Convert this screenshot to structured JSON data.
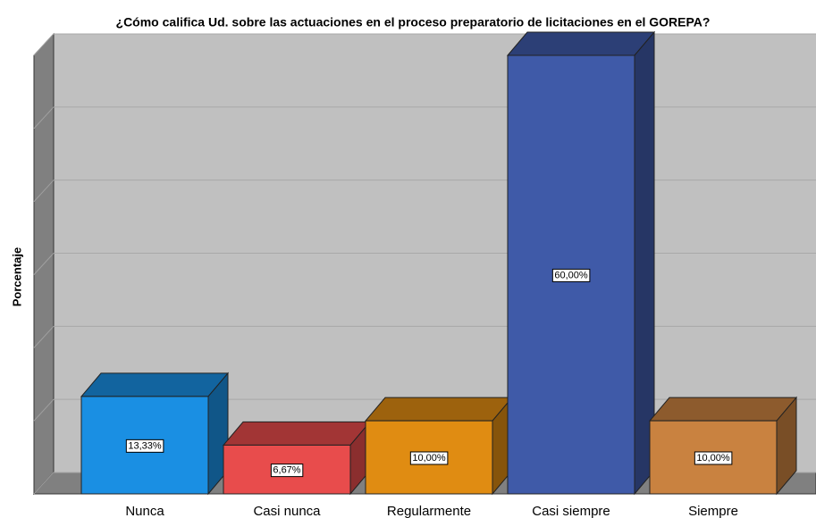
{
  "chart_data": {
    "type": "bar3d",
    "title": "¿Cómo califica Ud. sobre las  actuaciones en el proceso  preparatorio de licitaciones en el GOREPA?",
    "y_label": "Porcentaje",
    "categories": [
      "Nunca",
      "Casi nunca",
      "Regularmente",
      "Casi siempre",
      "Siempre"
    ],
    "values": [
      13.33,
      6.67,
      10,
      60,
      10
    ],
    "value_labels": [
      "13,33%",
      "6,67%",
      "10,00%",
      "60,00%",
      "10,00%"
    ],
    "colors": [
      "#1a8fe3",
      "#e84c4c",
      "#e08c12",
      "#3f5aa8",
      "#c98240"
    ],
    "ylim": [
      0,
      60
    ],
    "yticks": [
      0,
      10,
      20,
      30,
      40,
      50,
      60
    ],
    "grid": true
  }
}
